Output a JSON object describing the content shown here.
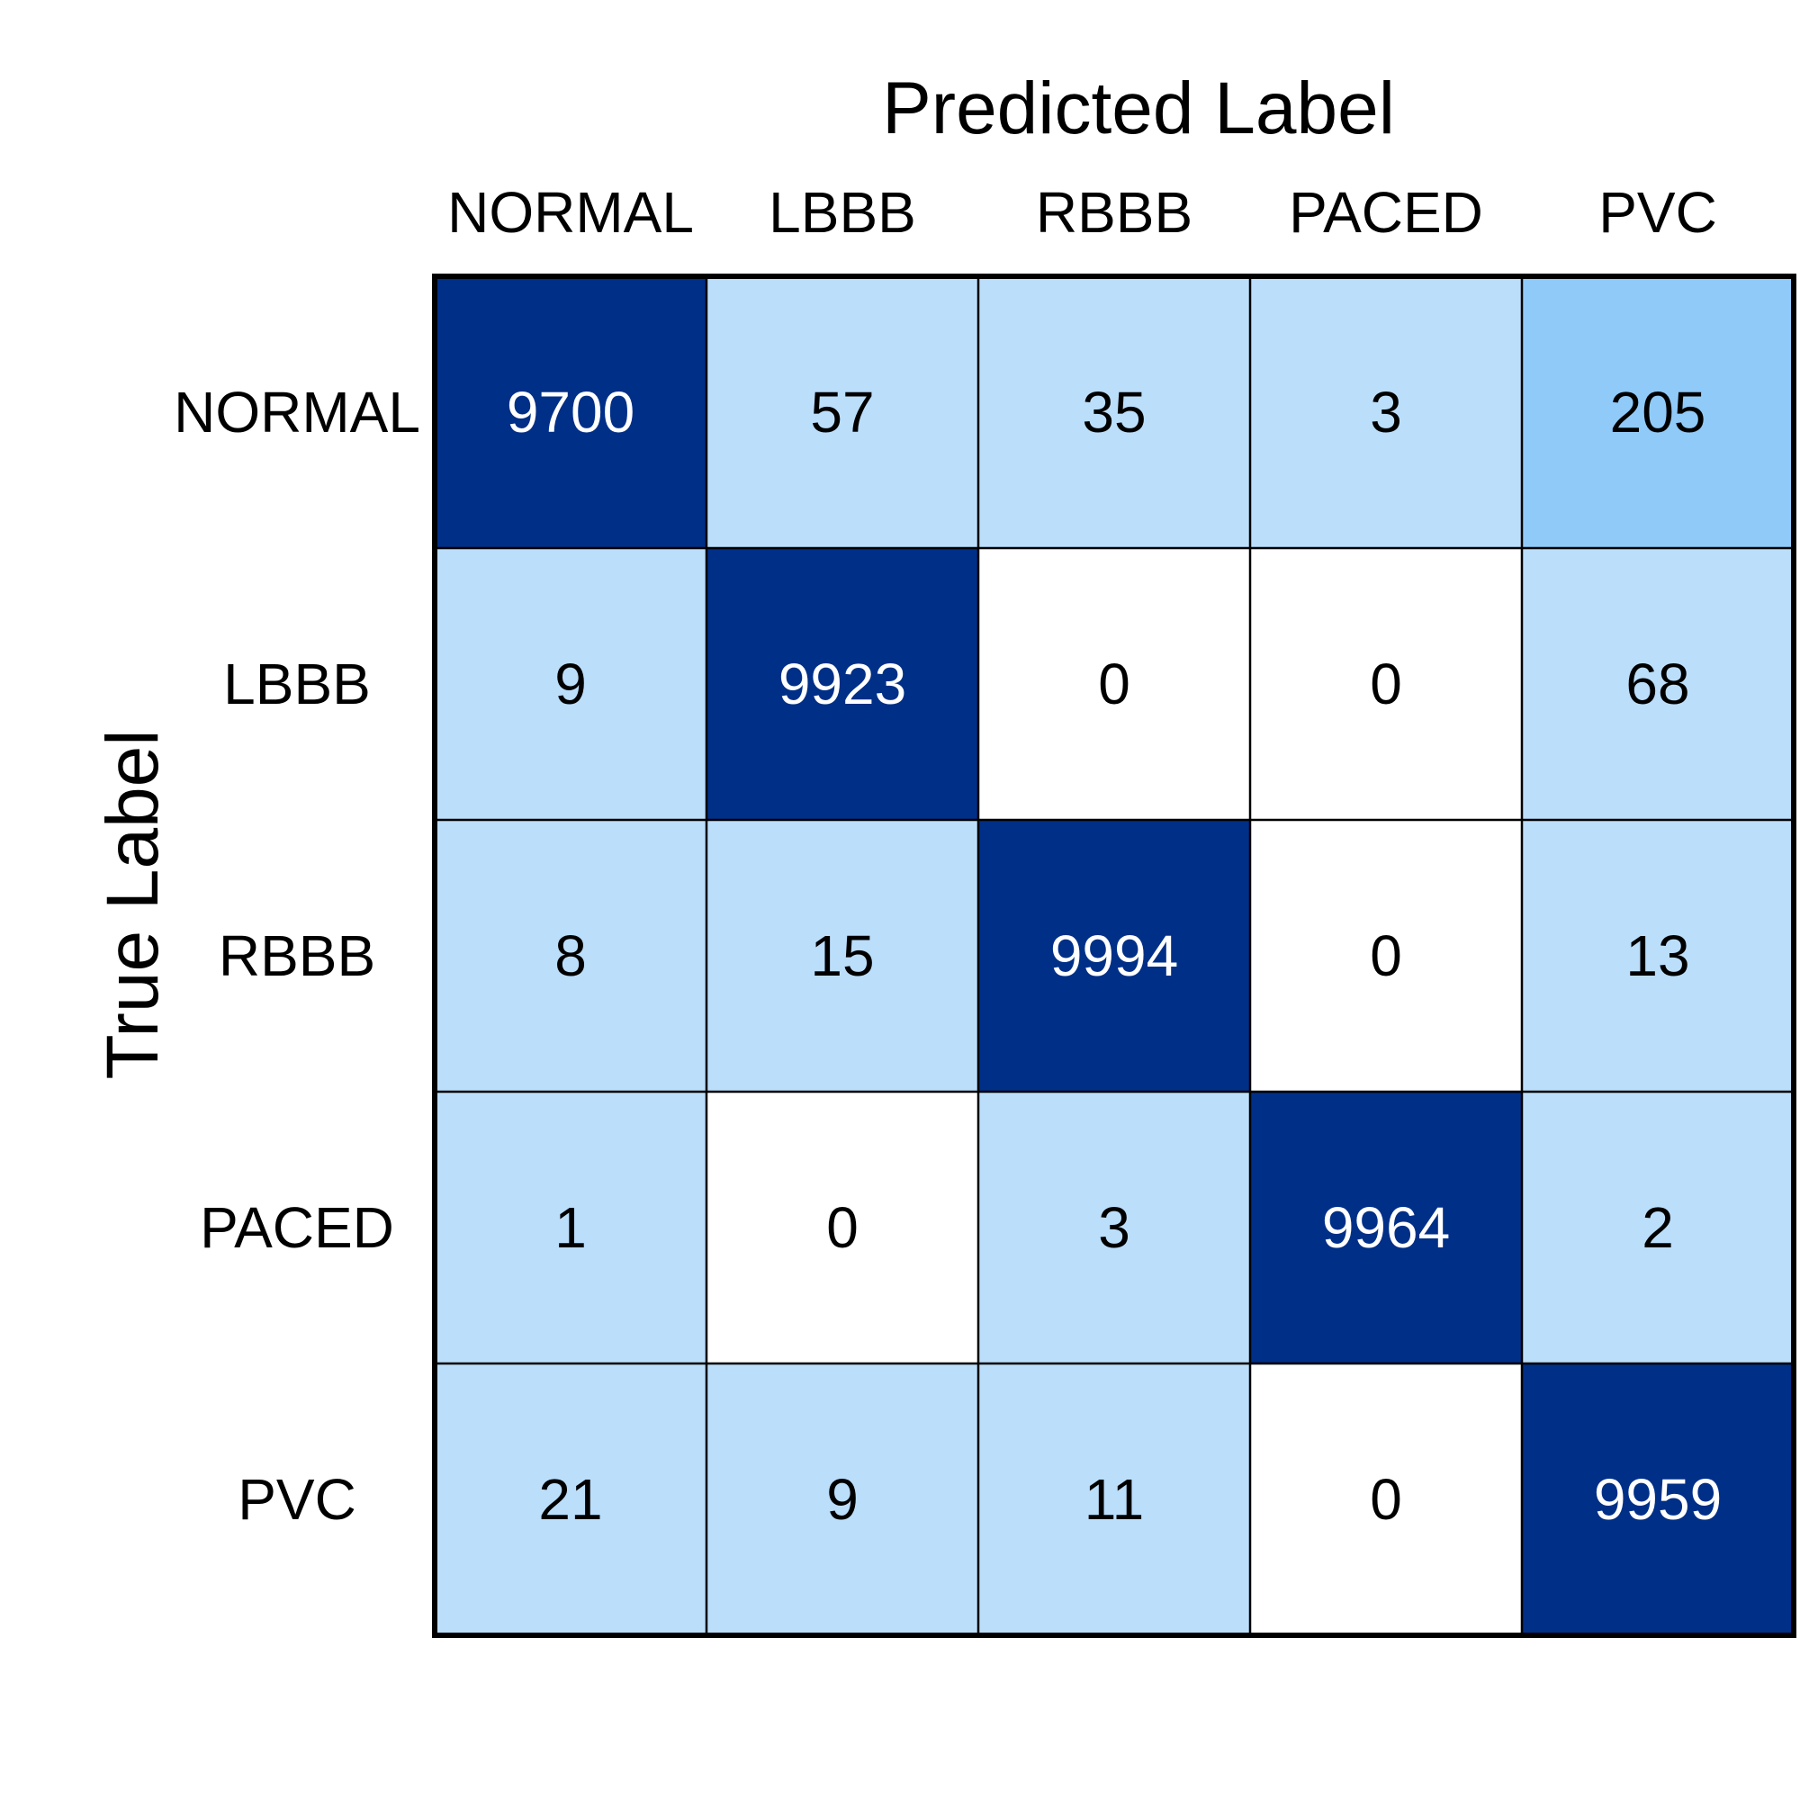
{
  "chart_data": {
    "type": "heatmap",
    "title": "",
    "xlabel": "Predicted Label",
    "ylabel": "True Label",
    "x_categories": [
      "NORMAL",
      "LBBB",
      "RBBB",
      "PACED",
      "PVC"
    ],
    "y_categories": [
      "NORMAL",
      "LBBB",
      "RBBB",
      "PACED",
      "PVC"
    ],
    "values": [
      [
        9700,
        57,
        35,
        3,
        205
      ],
      [
        9,
        9923,
        0,
        0,
        68
      ],
      [
        8,
        15,
        9994,
        0,
        13
      ],
      [
        1,
        0,
        3,
        9964,
        2
      ],
      [
        21,
        9,
        11,
        0,
        9959
      ]
    ],
    "colors": {
      "zero": "#ffffff",
      "low": "#bbdefb",
      "mid": "#90caf9",
      "high": "#002f87",
      "text_dark": "#000000",
      "text_light": "#ffffff",
      "grid": "#000000"
    },
    "legend": "none",
    "grid": true
  }
}
